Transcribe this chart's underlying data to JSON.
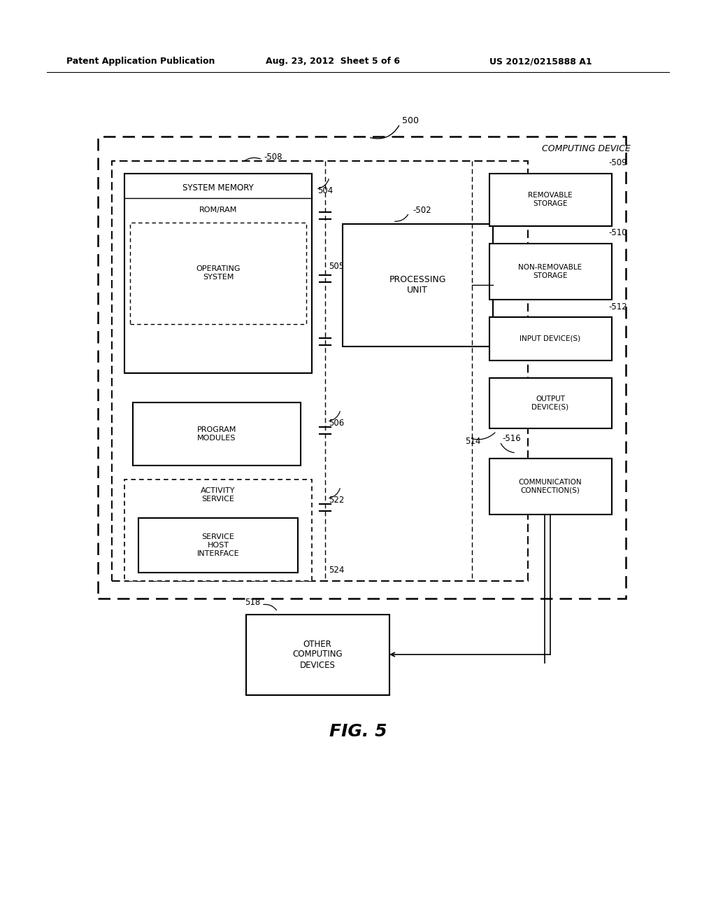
{
  "bg_color": "#ffffff",
  "header_left": "Patent Application Publication",
  "header_mid": "Aug. 23, 2012  Sheet 5 of 6",
  "header_right": "US 2012/0215888 A1",
  "figure_label": "FIG. 5",
  "label_500": "500",
  "label_computing_device": "COMPUTING DEVICE",
  "label_508": "508",
  "label_504": "504",
  "label_505": "505",
  "label_506": "506",
  "label_522": "522",
  "label_524": "524",
  "label_502": "502",
  "label_509": "509",
  "label_510": "510",
  "label_512": "512",
  "label_514": "514",
  "label_516": "516",
  "label_518": "518",
  "box_system_memory": "SYSTEM MEMORY",
  "box_romram": "ROM/RAM",
  "box_os": "OPERATING\nSYSTEM",
  "box_processing": "PROCESSING\nUNIT",
  "box_program": "PROGRAM\nMODULES",
  "box_activity": "ACTIVITY\nSERVICE",
  "box_service_host": "SERVICE\nHOST\nINTERFACE",
  "box_removable": "REMOVABLE\nSTORAGE",
  "box_nonremovable": "NON-REMOVABLE\nSTORAGE",
  "box_input": "INPUT DEVICE(S)",
  "box_output": "OUTPUT\nDEVICE(S)",
  "box_comm": "COMMUNICATION\nCONNECTION(S)",
  "box_other": "OTHER\nCOMPUTING\nDEVICES"
}
